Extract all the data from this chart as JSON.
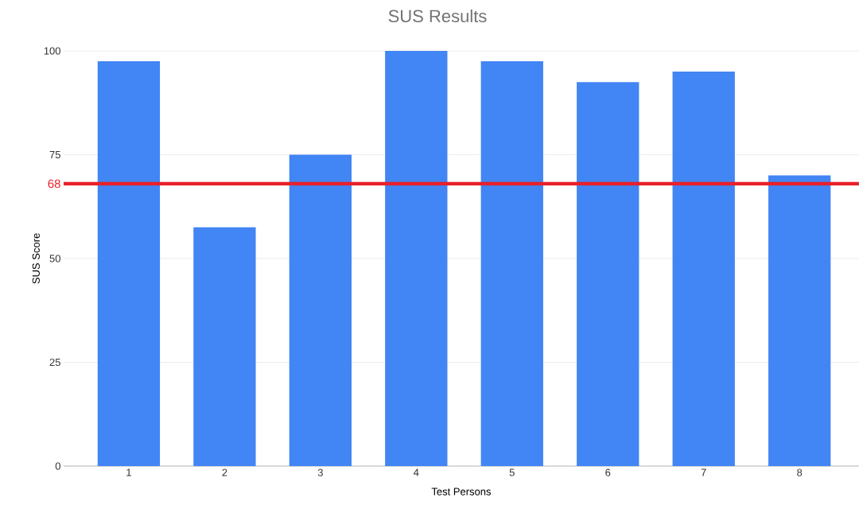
{
  "chart_data": {
    "type": "bar",
    "title": "SUS Results",
    "xlabel": "Test Persons",
    "ylabel": "SUS Score",
    "categories": [
      "1",
      "2",
      "3",
      "4",
      "5",
      "6",
      "7",
      "8"
    ],
    "values": [
      97.5,
      57.5,
      75,
      100,
      97.5,
      92.5,
      95,
      70
    ],
    "color": "#4285f4",
    "ylim": [
      0,
      100
    ],
    "yticks": [
      0,
      25,
      50,
      75,
      100
    ],
    "grid": "y",
    "ref_lines": [
      {
        "axis": "y",
        "value": 68,
        "label": "68",
        "color": "#e8202a"
      }
    ]
  }
}
